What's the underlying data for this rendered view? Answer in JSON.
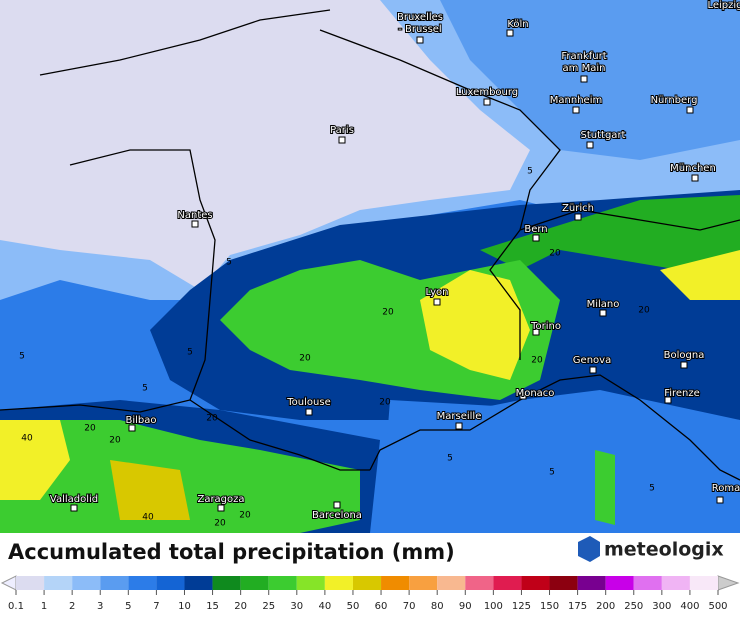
{
  "map": {
    "cities": [
      [
        "Bruxelles",
        "- Brussel"
      ],
      [
        "Köln"
      ],
      [
        "Frankfurt",
        "am Main"
      ],
      [
        "Luxembourg"
      ],
      [
        "Mannheim"
      ],
      [
        "Nürnberg"
      ],
      [
        "Paris"
      ],
      [
        "Stuttgart"
      ],
      [
        "München"
      ],
      [
        "Nantes"
      ],
      [
        "Zürich"
      ],
      [
        "Bern"
      ],
      [
        "Lyon"
      ],
      [
        "Milano"
      ],
      [
        "Torino"
      ],
      [
        "Genova"
      ],
      [
        "Bologna"
      ],
      [
        "Monaco"
      ],
      [
        "Firenze"
      ],
      [
        "Toulouse"
      ],
      [
        "Marseille"
      ],
      [
        "Bilbao"
      ],
      [
        "Valladolid"
      ],
      [
        "Zaragoza"
      ],
      [
        "Barcelona"
      ],
      [
        "Roma"
      ],
      [
        "Leipzig"
      ]
    ],
    "contour_labels": [
      "5",
      "5",
      "5",
      "5",
      "5",
      "5",
      "5",
      "5",
      "20",
      "20",
      "20",
      "20",
      "20",
      "20",
      "20",
      "20",
      "20",
      "20",
      "20",
      "40",
      "40"
    ]
  },
  "legend": {
    "title": "Accumulated total precipitation (mm)",
    "brand": "meteologix",
    "ticks": [
      0.1,
      1,
      2,
      3,
      5,
      7,
      10,
      15,
      20,
      25,
      30,
      40,
      50,
      60,
      70,
      80,
      90,
      100,
      125,
      150,
      175,
      200,
      250,
      300,
      400,
      500
    ],
    "colors": [
      "#dcdcf0",
      "#b4d4f8",
      "#8cbcf8",
      "#5a9cf0",
      "#2c7ce8",
      "#1464d4",
      "#003c96",
      "#0f8a1e",
      "#22ad22",
      "#3ccc30",
      "#86e428",
      "#f2f028",
      "#d8c800",
      "#f08c00",
      "#f8a040",
      "#f8b890",
      "#f06488",
      "#e01c50",
      "#c00018",
      "#8c0010",
      "#780090",
      "#c800e8",
      "#e070f0",
      "#f0b4f4",
      "#f8e8f8"
    ]
  }
}
